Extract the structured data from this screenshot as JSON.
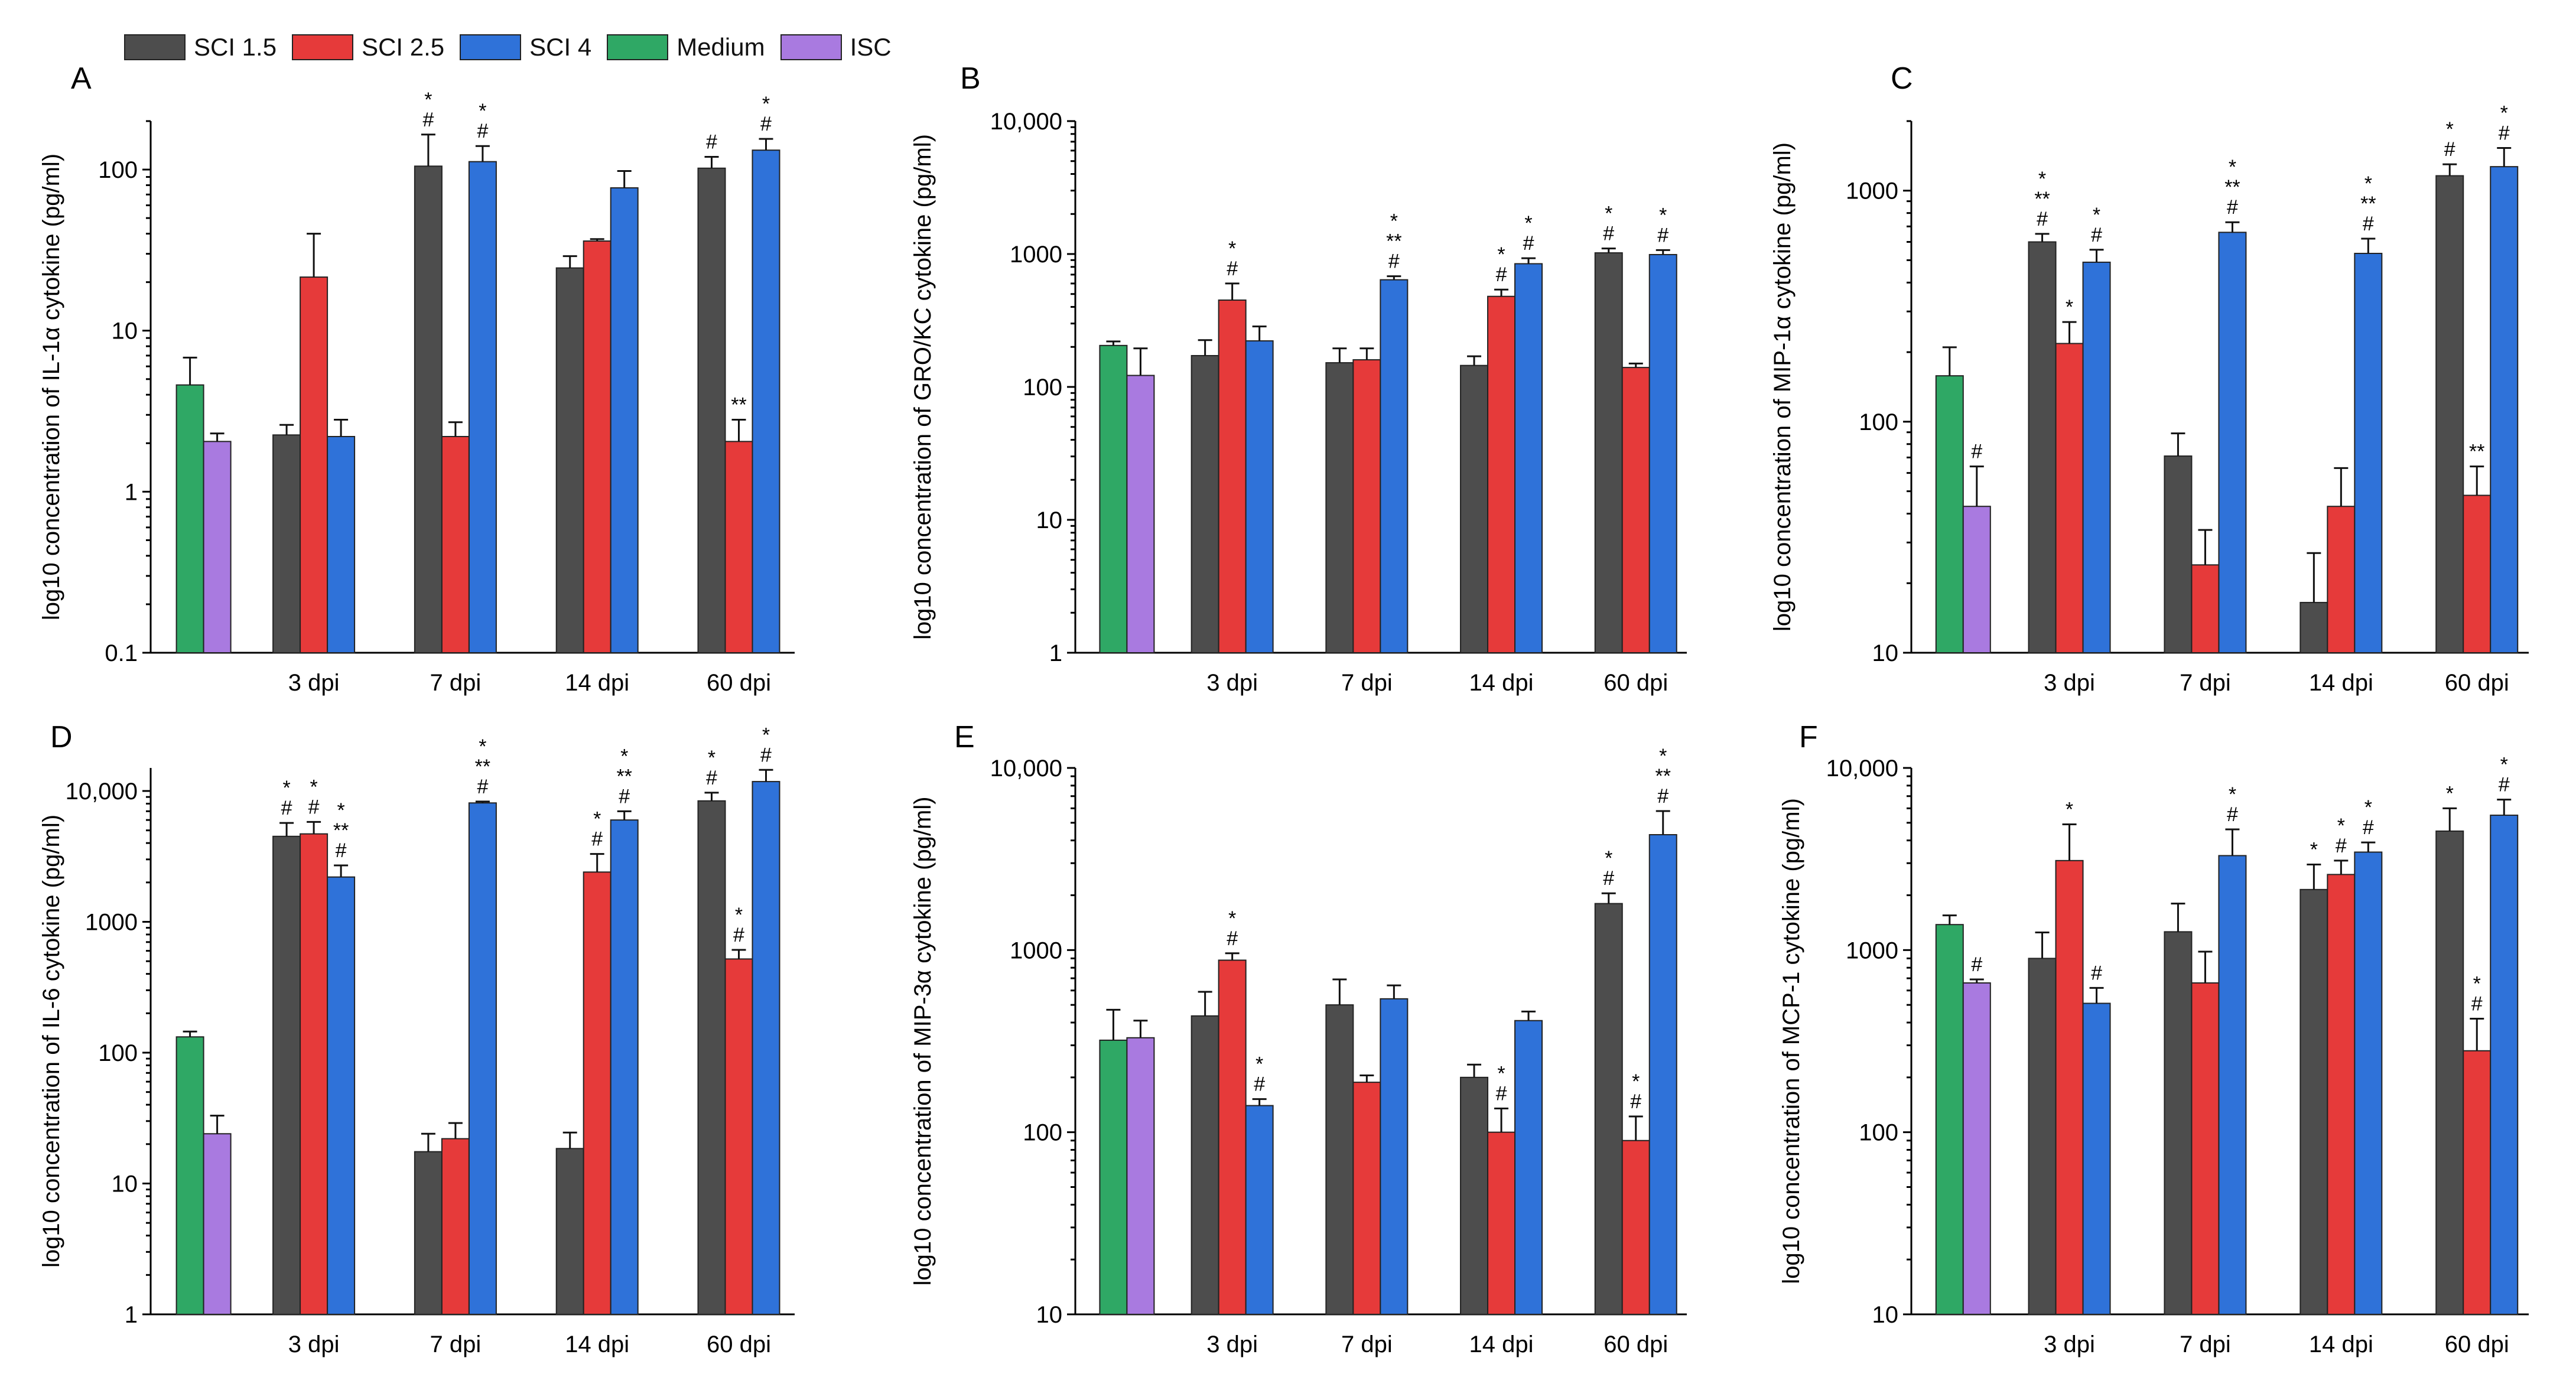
{
  "chart_data": [
    {
      "panel": "A",
      "type": "bar",
      "scale": "log",
      "ylabel": "log10 concentration of IL-1α cytokine (pg/ml)",
      "ylim": [
        0.1,
        200
      ],
      "yticks": [
        0.1,
        1,
        10,
        100
      ],
      "ytick_labels": [
        "0.1",
        "1",
        "10",
        "100"
      ],
      "categories": [
        "3 dpi",
        "7 dpi",
        "14 dpi",
        "60 dpi"
      ],
      "controls": [
        {
          "name": "Medium",
          "value": 4.6,
          "err": 6.8,
          "sig": []
        },
        {
          "name": "ISC",
          "value": 2.05,
          "err": 2.3,
          "sig": []
        }
      ],
      "series": [
        {
          "name": "SCI 1.5",
          "values": [
            2.25,
            105,
            24.5,
            102
          ],
          "err": [
            2.6,
            165,
            29,
            120
          ],
          "sig": [
            [],
            [
              "*",
              "#"
            ],
            [],
            [
              "#"
            ]
          ]
        },
        {
          "name": "SCI 2.5",
          "values": [
            21.5,
            2.2,
            36,
            2.05
          ],
          "err": [
            40,
            2.7,
            37,
            2.8
          ],
          "sig": [
            [],
            [],
            [],
            [
              "**"
            ]
          ]
        },
        {
          "name": "SCI 4",
          "values": [
            2.2,
            112,
            77,
            132
          ],
          "err": [
            2.8,
            140,
            98,
            155
          ],
          "sig": [
            [],
            [
              "*",
              "#"
            ],
            [],
            [
              "*",
              "#"
            ]
          ]
        }
      ]
    },
    {
      "panel": "B",
      "type": "bar",
      "scale": "log",
      "ylabel": "log10 concentration of GRO/KC cytokine (pg/ml)",
      "ylim": [
        1,
        10000
      ],
      "yticks": [
        1,
        10,
        100,
        1000,
        10000
      ],
      "ytick_labels": [
        "1",
        "10",
        "100",
        "1000",
        "10,000"
      ],
      "categories": [
        "3 dpi",
        "7 dpi",
        "14 dpi",
        "60 dpi"
      ],
      "controls": [
        {
          "name": "Medium",
          "value": 205,
          "err": 220,
          "sig": []
        },
        {
          "name": "ISC",
          "value": 122,
          "err": 195,
          "sig": []
        }
      ],
      "series": [
        {
          "name": "SCI 1.5",
          "values": [
            172,
            152,
            145,
            1020
          ],
          "err": [
            225,
            195,
            170,
            1100
          ],
          "sig": [
            [],
            [],
            [],
            [
              "*",
              "#"
            ]
          ]
        },
        {
          "name": "SCI 2.5",
          "values": [
            450,
            160,
            480,
            140
          ],
          "err": [
            600,
            195,
            540,
            150
          ],
          "sig": [
            [
              "*",
              "#"
            ],
            [],
            [
              "*",
              "#"
            ],
            []
          ]
        },
        {
          "name": "SCI 4",
          "values": [
            222,
            640,
            845,
            990
          ],
          "err": [
            285,
            680,
            930,
            1070
          ],
          "sig": [
            [],
            [
              "*",
              "**",
              "#"
            ],
            [
              "*",
              "#"
            ],
            [
              "*",
              "#"
            ]
          ]
        }
      ]
    },
    {
      "panel": "C",
      "type": "bar",
      "scale": "log",
      "ylabel": "log10 concentration of MIP-1α cytokine (pg/ml)",
      "ylim": [
        10,
        2000
      ],
      "yticks": [
        10,
        100,
        1000
      ],
      "ytick_labels": [
        "10",
        "100",
        "1000"
      ],
      "categories": [
        "3 dpi",
        "7 dpi",
        "14 dpi",
        "60 dpi"
      ],
      "controls": [
        {
          "name": "Medium",
          "value": 158,
          "err": 210,
          "sig": []
        },
        {
          "name": "ISC",
          "value": 43,
          "err": 64,
          "sig": [
            "#"
          ]
        }
      ],
      "series": [
        {
          "name": "SCI 1.5",
          "values": [
            600,
            71,
            16.5,
            1160
          ],
          "err": [
            650,
            89,
            27,
            1300
          ],
          "sig": [
            [
              "*",
              "**",
              "#"
            ],
            [],
            [],
            [
              "*",
              "#"
            ]
          ]
        },
        {
          "name": "SCI 2.5",
          "values": [
            218,
            24,
            43,
            48
          ],
          "err": [
            270,
            34,
            63,
            64
          ],
          "sig": [
            [
              "*"
            ],
            [],
            [],
            [
              "**"
            ]
          ]
        },
        {
          "name": "SCI 4",
          "values": [
            490,
            660,
            535,
            1270
          ],
          "err": [
            555,
            730,
            620,
            1530
          ],
          "sig": [
            [
              "*",
              "#"
            ],
            [
              "*",
              "**",
              "#"
            ],
            [
              "*",
              "**",
              "#"
            ],
            [
              "*",
              "#"
            ]
          ]
        }
      ]
    },
    {
      "panel": "D",
      "type": "bar",
      "scale": "log",
      "ylabel": "log10 concentration of IL-6 cytokine (pg/ml)",
      "ylim": [
        1,
        15000
      ],
      "yticks": [
        1,
        10,
        100,
        1000,
        10000
      ],
      "ytick_labels": [
        "1",
        "10",
        "100",
        "1000",
        "10,000"
      ],
      "categories": [
        "3 dpi",
        "7 dpi",
        "14 dpi",
        "60 dpi"
      ],
      "controls": [
        {
          "name": "Medium",
          "value": 132,
          "err": 145,
          "sig": []
        },
        {
          "name": "ISC",
          "value": 24,
          "err": 33,
          "sig": []
        }
      ],
      "series": [
        {
          "name": "SCI 1.5",
          "values": [
            4500,
            17.5,
            18.5,
            8400
          ],
          "err": [
            5700,
            24,
            24.5,
            9700
          ],
          "sig": [
            [
              "*",
              "#"
            ],
            [],
            [],
            [
              "*",
              "#"
            ]
          ]
        },
        {
          "name": "SCI 2.5",
          "values": [
            4700,
            22,
            2400,
            520
          ],
          "err": [
            5800,
            29,
            3300,
            610
          ],
          "sig": [
            [
              "*",
              "#"
            ],
            [],
            [
              "*",
              "#"
            ],
            [
              "*",
              "#"
            ]
          ]
        },
        {
          "name": "SCI 4",
          "values": [
            2200,
            8100,
            6000,
            11800
          ],
          "err": [
            2700,
            8300,
            7000,
            14500
          ],
          "sig": [
            [
              "*",
              "**",
              "#"
            ],
            [
              "*",
              "**",
              "#"
            ],
            [
              "*",
              "**",
              "#"
            ],
            [
              "*",
              "#"
            ]
          ]
        }
      ]
    },
    {
      "panel": "E",
      "type": "bar",
      "scale": "log",
      "ylabel": "log10 concentration of MIP-3α cytokine (pg/ml)",
      "ylim": [
        10,
        10000
      ],
      "yticks": [
        10,
        100,
        1000,
        10000
      ],
      "ytick_labels": [
        "10",
        "100",
        "1000",
        "10,000"
      ],
      "categories": [
        "3 dpi",
        "7 dpi",
        "14 dpi",
        "60 dpi"
      ],
      "controls": [
        {
          "name": "Medium",
          "value": 320,
          "err": 470,
          "sig": []
        },
        {
          "name": "ISC",
          "value": 330,
          "err": 410,
          "sig": []
        }
      ],
      "series": [
        {
          "name": "SCI 1.5",
          "values": [
            435,
            500,
            200,
            1800
          ],
          "err": [
            590,
            690,
            235,
            2050
          ],
          "sig": [
            [],
            [],
            [],
            [
              "*",
              "#"
            ]
          ]
        },
        {
          "name": "SCI 2.5",
          "values": [
            880,
            188,
            100,
            90
          ],
          "err": [
            960,
            205,
            135,
            122
          ],
          "sig": [
            [
              "*",
              "#"
            ],
            [],
            [
              "*",
              "#"
            ],
            [
              "*",
              "#"
            ]
          ]
        },
        {
          "name": "SCI 4",
          "values": [
            140,
            540,
            410,
            4300
          ],
          "err": [
            152,
            640,
            460,
            5800
          ],
          "sig": [
            [
              "*",
              "#"
            ],
            [],
            [],
            [
              "*",
              "**",
              "#"
            ]
          ]
        }
      ]
    },
    {
      "panel": "F",
      "type": "bar",
      "scale": "log",
      "ylabel": "log10 concentration of MCP-1 cytokine (pg/ml)",
      "ylim": [
        10,
        10000
      ],
      "yticks": [
        10,
        100,
        1000,
        10000
      ],
      "ytick_labels": [
        "10",
        "100",
        "1000",
        "10,000"
      ],
      "categories": [
        "3 dpi",
        "7 dpi",
        "14 dpi",
        "60 dpi"
      ],
      "controls": [
        {
          "name": "Medium",
          "value": 1380,
          "err": 1550,
          "sig": []
        },
        {
          "name": "ISC",
          "value": 660,
          "err": 690,
          "sig": [
            "#"
          ]
        }
      ],
      "series": [
        {
          "name": "SCI 1.5",
          "values": [
            900,
            1260,
            2150,
            4500
          ],
          "err": [
            1250,
            1800,
            2950,
            6000
          ],
          "sig": [
            [],
            [],
            [
              "*"
            ],
            [
              "*"
            ]
          ]
        },
        {
          "name": "SCI 2.5",
          "values": [
            3100,
            660,
            2600,
            280
          ],
          "err": [
            4900,
            980,
            3100,
            420
          ],
          "sig": [
            [
              "*"
            ],
            [],
            [
              "*",
              "#"
            ],
            [
              "*",
              "#"
            ]
          ]
        },
        {
          "name": "SCI 4",
          "values": [
            510,
            3300,
            3450,
            5500
          ],
          "err": [
            620,
            4600,
            3900,
            6700
          ],
          "sig": [
            [
              "#"
            ],
            [
              "*",
              "#"
            ],
            [
              "*",
              "#"
            ],
            [
              "*",
              "#"
            ]
          ]
        }
      ]
    }
  ],
  "legend": [
    {
      "name": "SCI 1.5",
      "color": "#4d4d4d"
    },
    {
      "name": "SCI 2.5",
      "color": "#e63a3a"
    },
    {
      "name": "SCI 4",
      "color": "#2f72d9"
    },
    {
      "name": "Medium",
      "color": "#2fa865"
    },
    {
      "name": "ISC",
      "color": "#a97ae0"
    }
  ],
  "colors": {
    "SCI 1.5": "#4d4d4d",
    "SCI 2.5": "#e63a3a",
    "SCI 4": "#2f72d9",
    "Medium": "#2fa865",
    "ISC": "#a97ae0"
  }
}
